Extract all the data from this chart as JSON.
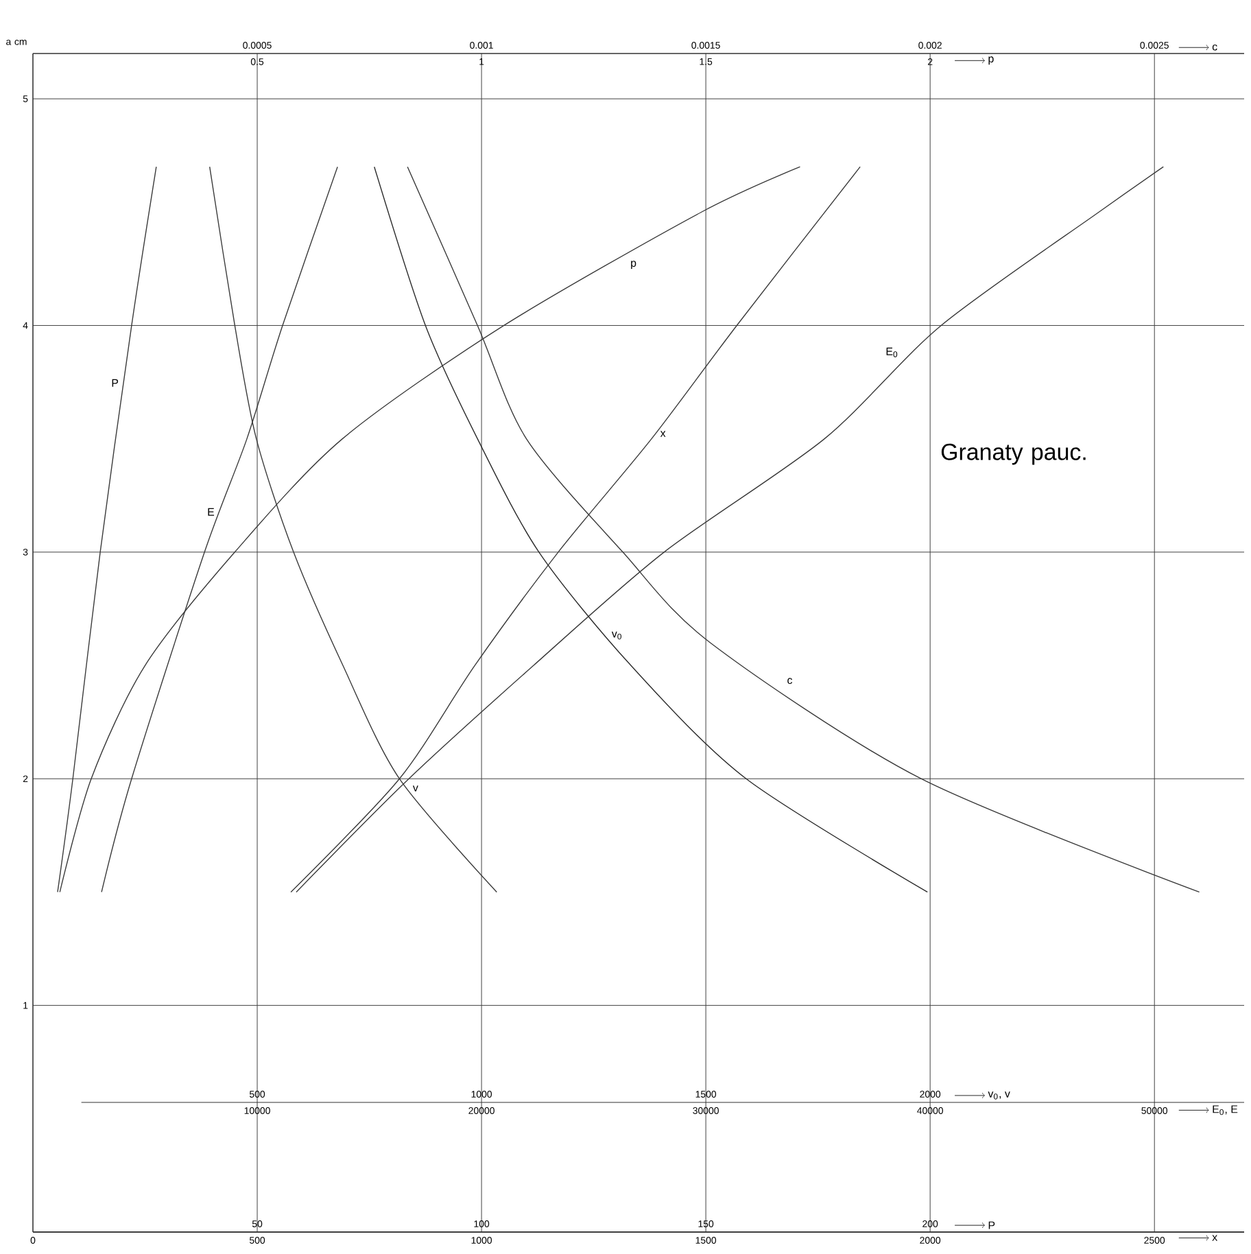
{
  "chart_data": [
    {
      "type": "line",
      "ylabel": "a cm",
      "xlabel": "x",
      "xlim": [
        0,
        2700
      ],
      "xticks": [
        0,
        500,
        1000,
        1500,
        2000,
        2500
      ],
      "ylim": [
        0,
        5.2
      ],
      "yticks": [
        1,
        2,
        3,
        4,
        5
      ],
      "grid": true,
      "marker": "none",
      "line_style": "solid",
      "annotations": [
        "Granaty pauc."
      ],
      "series": [
        {
          "name": "x",
          "color": "#3a3a3a",
          "x": [
            575,
            817,
            985,
            1171,
            1379,
            1569,
            1844
          ],
          "values": [
            1.5,
            2,
            2.5,
            3,
            3.5,
            4,
            4.7
          ]
        }
      ]
    },
    {
      "type": "line",
      "xlabel": "P",
      "xlim": [
        0,
        270
      ],
      "xticks": [
        50,
        100,
        150,
        200
      ],
      "ylim": [
        0,
        5.2
      ],
      "tick_labels": "x",
      "marker": "none",
      "line_style": "solid",
      "series": [
        {
          "name": "P",
          "color": "#3a3a3a",
          "x": [
            5.5,
            8.9,
            15.0,
            22.0,
            27.5
          ],
          "values": [
            1.5,
            2,
            3,
            4,
            4.7
          ]
        }
      ]
    },
    {
      "type": "line",
      "xlabel": "v$_{0}$, v",
      "xlim": [
        0,
        2700
      ],
      "xticks": [
        500,
        1000,
        1500,
        2000
      ],
      "ylim": [
        0,
        5.2
      ],
      "tick_labels": "x",
      "marker": "none",
      "line_style": "solid",
      "series": [
        {
          "name": "v",
          "color": "#3a3a3a",
          "x": [
            394,
            450,
            498,
            581,
            691,
            817,
            1034
          ],
          "values": [
            4.7,
            4,
            3.5,
            3,
            2.5,
            2,
            1.5
          ]
        },
        {
          "name": "v$_{0}$",
          "color": "#2a2a2a",
          "x": [
            761,
            875,
            991,
            1128,
            1333,
            1590,
            1994
          ],
          "values": [
            4.7,
            4,
            3.5,
            3,
            2.5,
            2,
            1.5
          ]
        }
      ]
    },
    {
      "type": "line",
      "xlabel": "E$_{0}$, E",
      "xlim": [
        0,
        54000
      ],
      "xticks": [
        10000,
        20000,
        30000,
        40000,
        50000
      ],
      "ylim": [
        0,
        5.2
      ],
      "tick_labels": "x",
      "marker": "none",
      "line_style": "solid",
      "series": [
        {
          "name": "E",
          "color": "#3a3a3a",
          "x": [
            3060,
            4400,
            7650,
            9540,
            11130,
            13580
          ],
          "values": [
            1.5,
            2,
            3,
            3.5,
            4,
            4.7
          ]
        },
        {
          "name": "E$_{0}$",
          "color": "#3a3a3a",
          "x": [
            11740,
            16760,
            22320,
            28140,
            35290,
            40490,
            47520,
            50400
          ],
          "values": [
            1.5,
            2,
            2.5,
            3,
            3.5,
            4,
            4.5,
            4.7
          ]
        }
      ]
    },
    {
      "type": "line",
      "xlabel": "p",
      "xlim": [
        0,
        2.7
      ],
      "xticks": [
        0.5,
        1,
        1.5,
        2
      ],
      "ylim": [
        0,
        5.2
      ],
      "tick_labels": "x",
      "marker": "none",
      "line_style": "solid",
      "series": [
        {
          "name": "p",
          "color": "#3a3a3a",
          "x": [
            0.06,
            0.13,
            0.25,
            0.45,
            0.69,
            1.05,
            1.49,
            1.71
          ],
          "values": [
            1.5,
            2,
            2.5,
            3,
            3.5,
            4,
            4.5,
            4.7
          ]
        }
      ]
    },
    {
      "type": "line",
      "xlabel": "c",
      "xlim": [
        0,
        0.0027
      ],
      "xticks": [
        0.0005,
        0.001,
        0.0015,
        0.002,
        0.0025
      ],
      "ylim": [
        0,
        5.2
      ],
      "tick_labels": "x",
      "marker": "none",
      "line_style": "solid",
      "series": [
        {
          "name": "c",
          "color": "#3a3a3a",
          "x": [
            0.000835,
            0.000991,
            0.0011,
            0.001315,
            0.00151,
            0.00198,
            0.0026
          ],
          "values": [
            4.7,
            4,
            3.5,
            3,
            2.6,
            2,
            1.5
          ]
        }
      ]
    }
  ]
}
